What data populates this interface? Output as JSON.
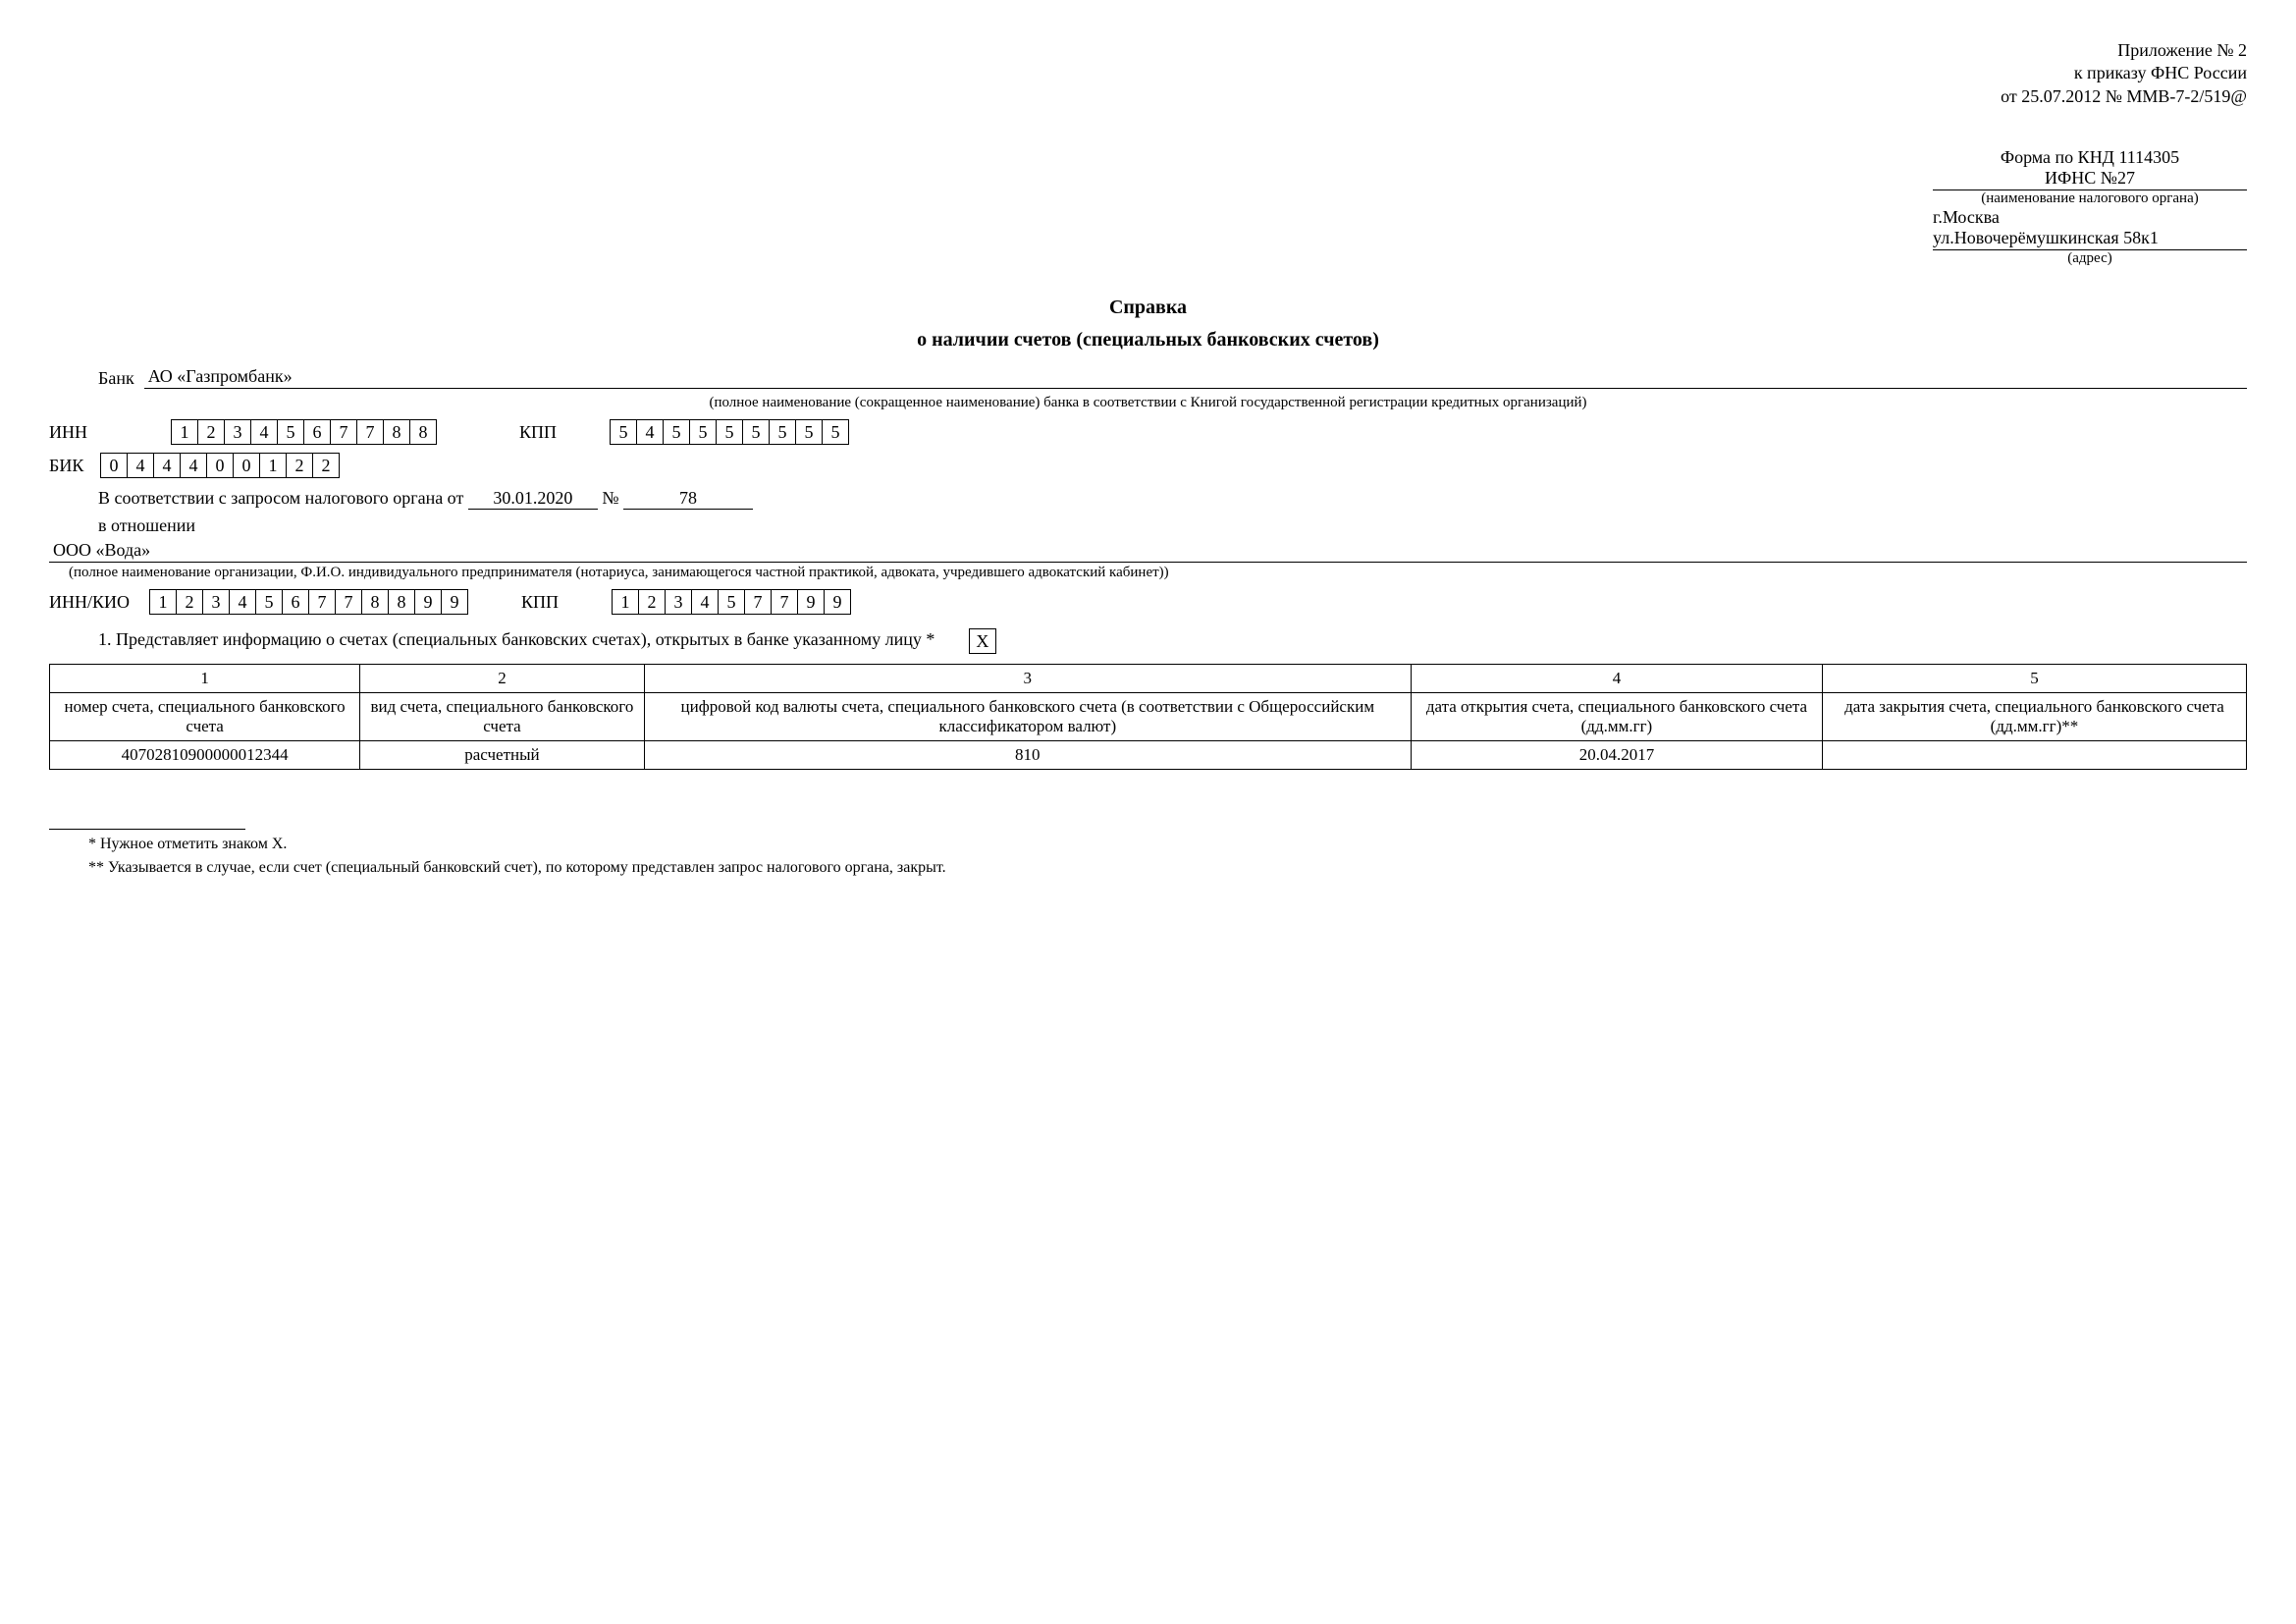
{
  "header": {
    "line1": "Приложение № 2",
    "line2": "к приказу ФНС России",
    "line3": "от 25.07.2012 № ММВ-7-2/519@"
  },
  "form_block": {
    "knd": "Форма по КНД 1114305",
    "ifns": "ИФНС №27",
    "ifns_caption": "(наименование налогового органа)",
    "addr1": "г.Москва",
    "addr2": "ул.Новочерёмушкинская 58к1",
    "addr_caption": "(адрес)"
  },
  "title": "Справка",
  "title2": "о наличии счетов (специальных банковских счетов)",
  "bank_label": "Банк",
  "bank_name": "АО «Газпромбанк»",
  "bank_caption": "(полное наименование (сокращенное наименование) банка в соответствии с Книгой государственной регистрации кредитных организаций)",
  "inn_label": "ИНН",
  "inn": [
    "1",
    "2",
    "3",
    "4",
    "5",
    "6",
    "7",
    "7",
    "8",
    "8"
  ],
  "kpp_label": "КПП",
  "kpp": [
    "5",
    "4",
    "5",
    "5",
    "5",
    "5",
    "5",
    "5",
    "5"
  ],
  "bik_label": "БИК",
  "bik": [
    "0",
    "4",
    "4",
    "4",
    "0",
    "0",
    "1",
    "2",
    "2"
  ],
  "request_line": {
    "prefix": "В соответствии с запросом налогового органа от",
    "date": "30.01.2020",
    "num_label": "№",
    "num": "78"
  },
  "in_respect": "в отношении",
  "org_name": "ООО «Вода»",
  "org_caption": "(полное наименование организации, Ф.И.О. индивидуального предпринимателя (нотариуса, занимающегося частной практикой, адвоката, учредившего адвокатский кабинет))",
  "inn_kio_label": "ИНН/КИО",
  "inn_kio": [
    "1",
    "2",
    "3",
    "4",
    "5",
    "6",
    "7",
    "7",
    "8",
    "8",
    "9",
    "9"
  ],
  "kpp2": [
    "1",
    "2",
    "3",
    "4",
    "5",
    "7",
    "7",
    "9",
    "9"
  ],
  "section1": "1. Представляет информацию о счетах (специальных банковских счетах), открытых в банке указанному лицу *",
  "check_mark": "X",
  "table": {
    "col_nums": [
      "1",
      "2",
      "3",
      "4",
      "5"
    ],
    "headers": [
      "номер счета, специального банковского счета",
      "вид счета, специального банковского счета",
      "цифровой код валюты счета, специального банковского счета (в соответствии с Общероссийским классификатором валют)",
      "дата открытия счета, специального банковского счета (дд.мм.гг)",
      "дата закрытия счета, специального банковского счета (дд.мм.гг)**"
    ],
    "rows": [
      [
        "40702810900000012344",
        "расчетный",
        "810",
        "20.04.2017",
        ""
      ]
    ]
  },
  "footnotes": {
    "f1": "* Нужное отметить знаком X.",
    "f2": "** Указывается в случае, если счет (специальный банковский счет), по которому представлен запрос налогового органа, закрыт."
  }
}
